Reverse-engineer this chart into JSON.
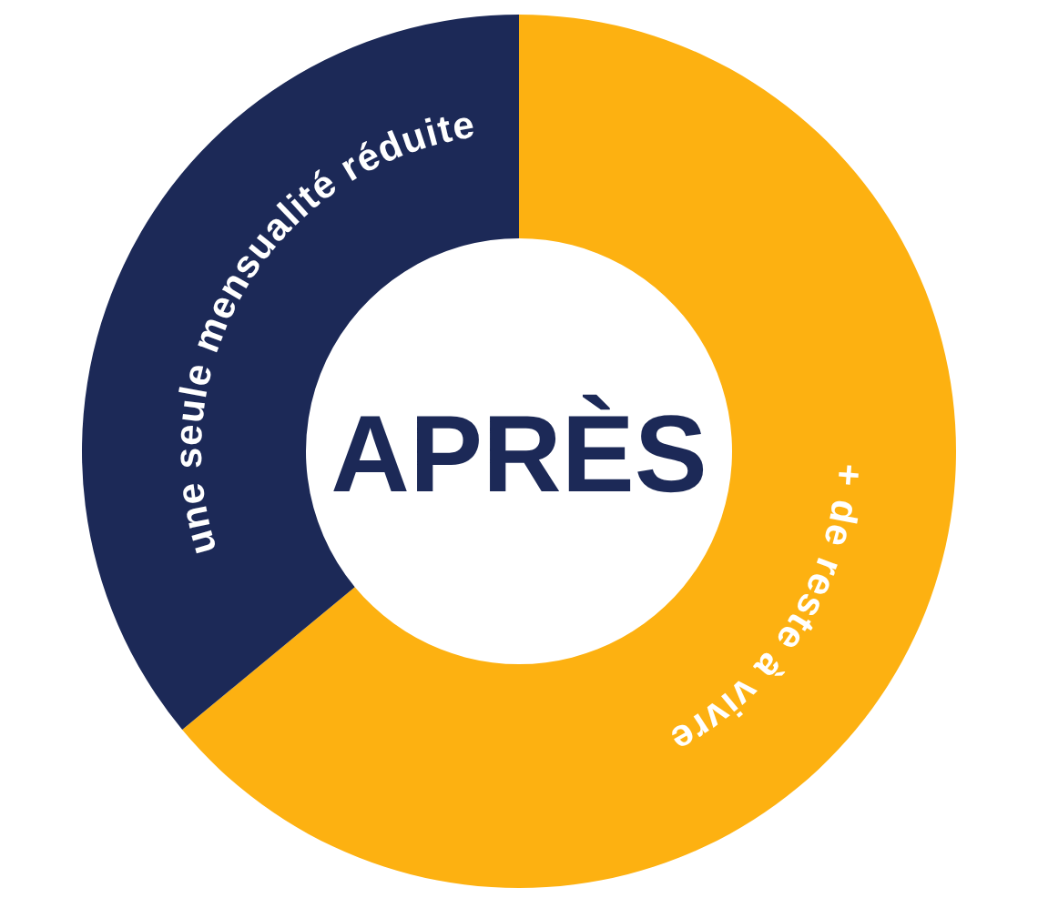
{
  "chart_data": {
    "type": "donut",
    "title": "APRÈS",
    "categories": [
      "+ de reste à vivre",
      "une seule mensualité réduite"
    ],
    "values": [
      64,
      36
    ],
    "colors": [
      "#fdb111",
      "#1c2957"
    ]
  }
}
